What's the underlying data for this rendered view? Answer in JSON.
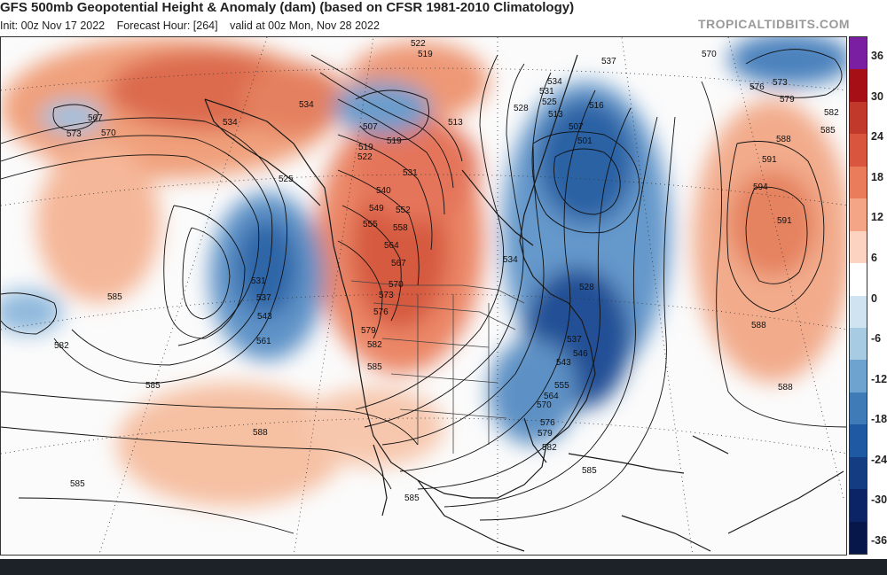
{
  "header": {
    "title": "GFS 500mb Geopotential Height & Anomaly (dam) (based on CFSR 1981-2010 Climatology)",
    "init": "Init: 00z Nov 17 2022",
    "forecast_hour": "Forecast Hour: [264]",
    "valid": "valid at 00z Mon, Nov 28 2022",
    "site": "TROPICALTIDBITS.COM"
  },
  "colorbar": {
    "labels": [
      "36",
      "30",
      "24",
      "18",
      "12",
      "6",
      "0",
      "-6",
      "-12",
      "-18",
      "-24",
      "-30",
      "-36"
    ],
    "colors": [
      "#7b1fa2",
      "#a50f15",
      "#c0392b",
      "#d9553d",
      "#ea7b5b",
      "#f3a585",
      "#fbd3c0",
      "#ffffff",
      "#cfe4f0",
      "#a7cbe2",
      "#6fa3cf",
      "#3f7bb6",
      "#1f59a3",
      "#143c82",
      "#0b2466",
      "#07174a"
    ]
  },
  "map": {
    "contour_labels": [
      "522",
      "519",
      "537",
      "570",
      "573",
      "534",
      "528",
      "531",
      "525",
      "513",
      "516",
      "507",
      "501",
      "579",
      "582",
      "585",
      "588",
      "591",
      "594",
      "576",
      "567",
      "570",
      "573",
      "525",
      "519",
      "522",
      "531",
      "540",
      "549",
      "552",
      "555",
      "558",
      "564",
      "567",
      "570",
      "573",
      "576",
      "579",
      "582",
      "585",
      "588",
      "534",
      "531",
      "537",
      "543",
      "561",
      "585",
      "582",
      "585",
      "585",
      "588",
      "585",
      "528",
      "537",
      "543",
      "546",
      "555",
      "564",
      "570",
      "576",
      "579",
      "582",
      "585",
      "588",
      "591",
      "534",
      "507",
      "513",
      "519",
      "534"
    ]
  }
}
